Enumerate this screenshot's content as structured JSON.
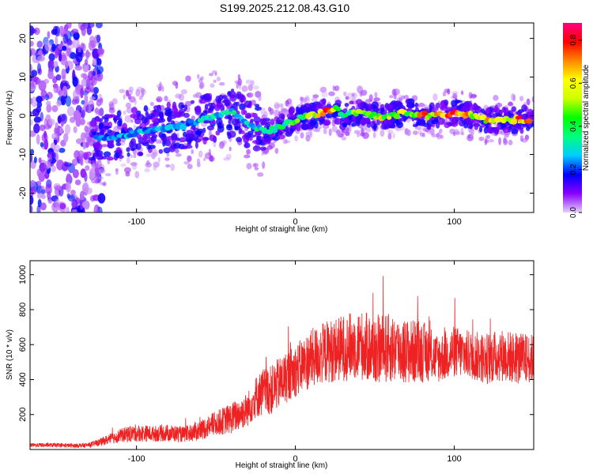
{
  "figure": {
    "title": "S199.2025.212.08.43.G10"
  },
  "chart_data": [
    {
      "type": "heatmap",
      "xlabel": "Height of straight line (km)",
      "ylabel": "Frequency (Hz)",
      "xlim": [
        -167,
        150
      ],
      "ylim": [
        -25,
        24
      ],
      "xticks": [
        -100,
        0,
        100
      ],
      "yticks": [
        -20,
        -10,
        0,
        10,
        20
      ],
      "colorbar": {
        "label": "Normalized spectral amplitude",
        "range": [
          0.0,
          0.88
        ],
        "ticks": [
          0.0,
          0.2,
          0.4,
          0.6,
          0.8
        ],
        "tick_labels": [
          "0.0",
          "0.2",
          "0.4",
          "0.6",
          "0.8"
        ],
        "colormap": [
          "#e6d0f7",
          "#8800ff",
          "#0000ff",
          "#00ccff",
          "#00ff80",
          "#00ff00",
          "#ccff00",
          "#ffff00",
          "#ff8800",
          "#ff0000",
          "#ff0080"
        ]
      },
      "ridge": {
        "x": [
          -125,
          -110,
          -95,
          -80,
          -65,
          -50,
          -40,
          -30,
          -20,
          -10,
          0,
          10,
          20,
          25,
          30,
          40,
          50,
          60,
          70,
          80,
          90,
          100,
          110,
          120,
          130,
          140,
          148
        ],
        "frequency": [
          -6,
          -5,
          -4,
          -3,
          -2,
          0,
          1,
          -2,
          -4,
          -3,
          -1,
          0,
          1,
          2,
          0,
          1,
          0,
          0,
          1,
          0,
          0,
          1,
          0,
          -1,
          -1,
          -1,
          -1
        ],
        "amplitude": [
          0.25,
          0.3,
          0.3,
          0.28,
          0.3,
          0.35,
          0.38,
          0.3,
          0.4,
          0.45,
          0.5,
          0.6,
          0.8,
          0.6,
          0.4,
          0.55,
          0.6,
          0.65,
          0.6,
          0.85,
          0.7,
          0.8,
          0.75,
          0.7,
          0.7,
          0.8,
          0.7
        ]
      }
    },
    {
      "type": "line",
      "xlabel": "Height of straight line (km)",
      "ylabel": "SNR (10 * v/v)",
      "xlim": [
        -167,
        150
      ],
      "ylim": [
        0,
        1080
      ],
      "xticks": [
        -100,
        0,
        100
      ],
      "yticks": [
        200,
        400,
        600,
        800,
        1000
      ],
      "series": [
        {
          "color": "#ee2222",
          "x": [
            -167,
            -150,
            -140,
            -130,
            -120,
            -110,
            -100,
            -90,
            -80,
            -70,
            -60,
            -50,
            -40,
            -30,
            -25,
            -20,
            -15,
            -10,
            -5,
            0,
            10,
            20,
            30,
            40,
            50,
            60,
            70,
            80,
            85,
            90,
            100,
            110,
            120,
            130,
            140,
            150
          ],
          "mean": [
            25,
            25,
            22,
            25,
            50,
            80,
            95,
            90,
            95,
            85,
            110,
            150,
            180,
            230,
            300,
            330,
            340,
            380,
            420,
            450,
            520,
            560,
            580,
            600,
            570,
            580,
            560,
            560,
            540,
            520,
            560,
            540,
            520,
            540,
            520,
            520
          ],
          "spread": [
            12,
            12,
            12,
            14,
            25,
            40,
            50,
            45,
            50,
            45,
            60,
            70,
            90,
            100,
            120,
            140,
            140,
            150,
            150,
            150,
            170,
            180,
            190,
            200,
            200,
            200,
            190,
            180,
            150,
            140,
            150,
            140,
            150,
            150,
            150,
            140
          ]
        }
      ]
    }
  ]
}
